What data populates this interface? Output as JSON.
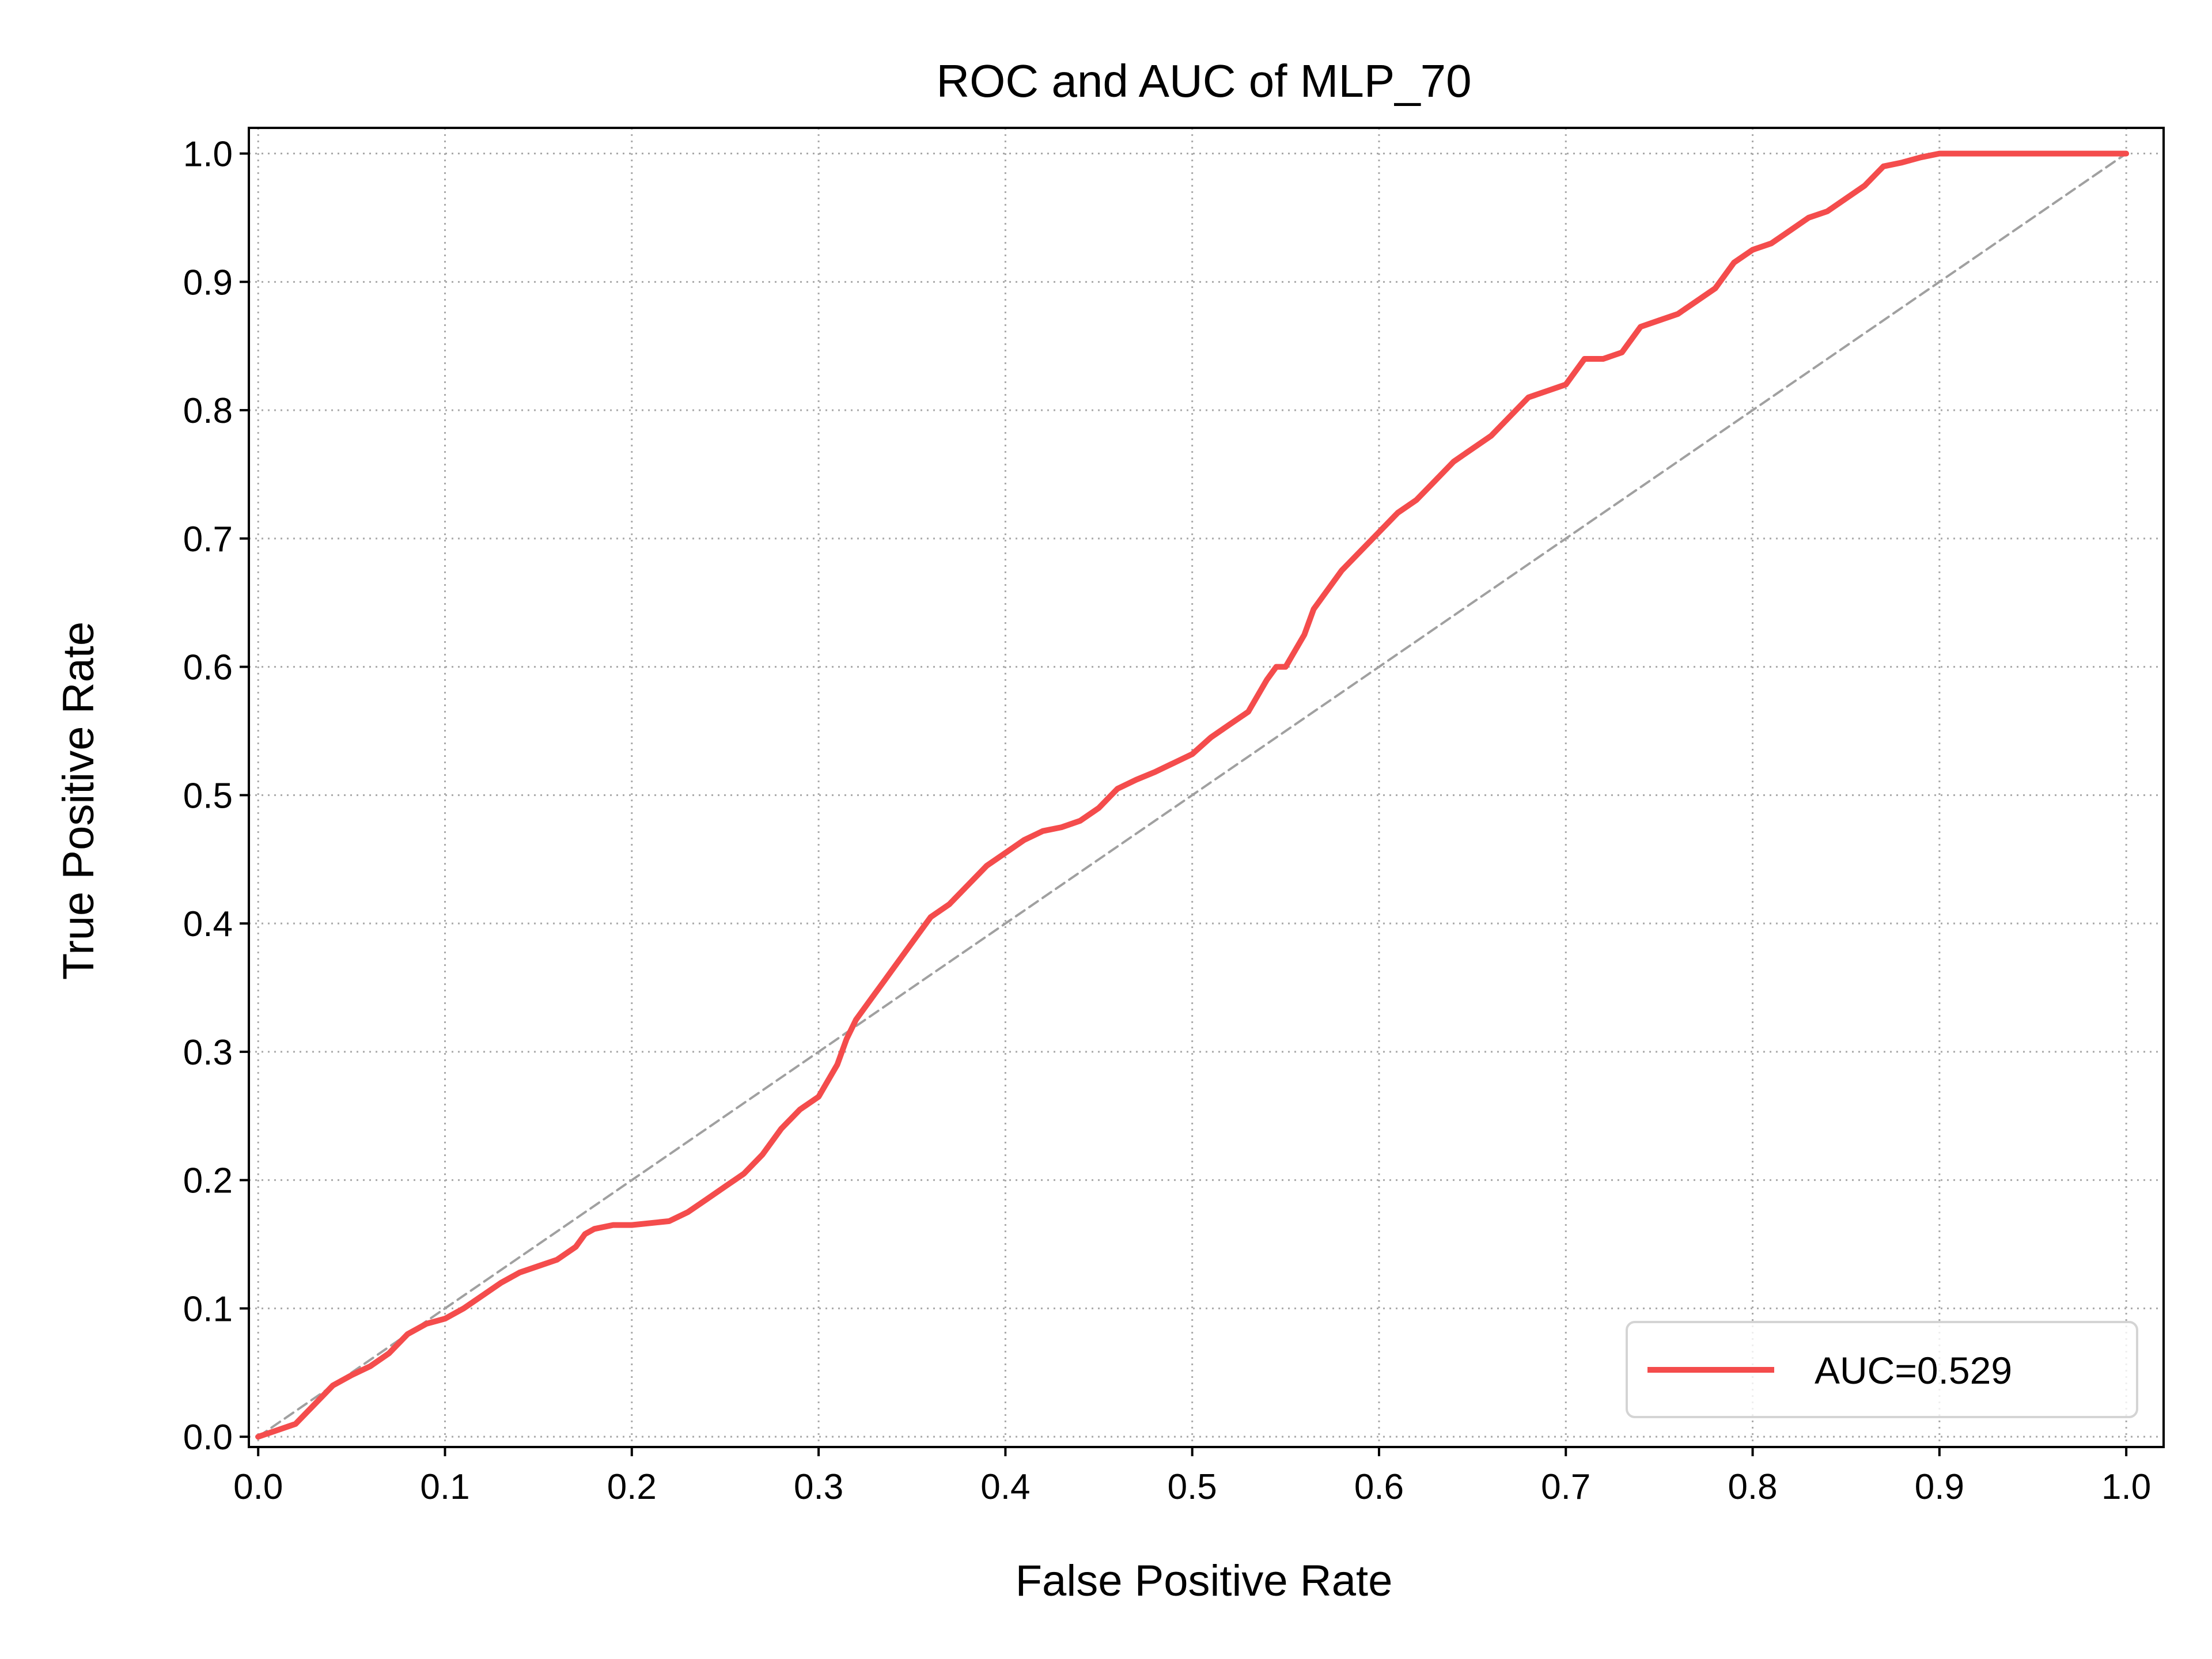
{
  "chart_data": {
    "type": "line",
    "title": "ROC and AUC of MLP_70",
    "xlabel": "False Positive Rate",
    "ylabel": "True Positive Rate",
    "xlim": [
      -0.005,
      1.02
    ],
    "ylim": [
      -0.008,
      1.02
    ],
    "xticks": [
      "0.0",
      "0.1",
      "0.2",
      "0.3",
      "0.4",
      "0.5",
      "0.6",
      "0.7",
      "0.8",
      "0.9",
      "1.0"
    ],
    "yticks": [
      "0.0",
      "0.1",
      "0.2",
      "0.3",
      "0.4",
      "0.5",
      "0.6",
      "0.7",
      "0.8",
      "0.9",
      "1.0"
    ],
    "grid": true,
    "legend_position": "lower-right",
    "series": [
      {
        "name": "AUC=0.529",
        "color": "#f44c4c",
        "x": [
          0.0,
          0.02,
          0.03,
          0.04,
          0.05,
          0.06,
          0.07,
          0.08,
          0.09,
          0.1,
          0.11,
          0.12,
          0.13,
          0.14,
          0.15,
          0.16,
          0.17,
          0.175,
          0.18,
          0.19,
          0.2,
          0.22,
          0.23,
          0.24,
          0.25,
          0.26,
          0.27,
          0.28,
          0.29,
          0.3,
          0.31,
          0.315,
          0.32,
          0.33,
          0.335,
          0.34,
          0.35,
          0.36,
          0.37,
          0.38,
          0.39,
          0.4,
          0.41,
          0.42,
          0.43,
          0.44,
          0.45,
          0.46,
          0.47,
          0.48,
          0.49,
          0.5,
          0.51,
          0.52,
          0.53,
          0.54,
          0.545,
          0.55,
          0.56,
          0.565,
          0.57,
          0.58,
          0.59,
          0.6,
          0.61,
          0.62,
          0.63,
          0.64,
          0.65,
          0.66,
          0.67,
          0.68,
          0.69,
          0.7,
          0.71,
          0.72,
          0.73,
          0.74,
          0.75,
          0.76,
          0.77,
          0.78,
          0.79,
          0.8,
          0.81,
          0.82,
          0.83,
          0.84,
          0.85,
          0.86,
          0.87,
          0.88,
          0.89,
          0.9,
          0.91,
          0.92,
          0.93,
          0.94,
          0.95,
          0.96,
          0.97,
          0.98,
          0.99,
          1.0
        ],
        "y": [
          0.0,
          0.01,
          0.025,
          0.04,
          0.048,
          0.055,
          0.065,
          0.08,
          0.088,
          0.092,
          0.1,
          0.11,
          0.12,
          0.128,
          0.133,
          0.138,
          0.148,
          0.158,
          0.162,
          0.165,
          0.165,
          0.168,
          0.175,
          0.185,
          0.195,
          0.205,
          0.22,
          0.24,
          0.255,
          0.265,
          0.29,
          0.31,
          0.325,
          0.345,
          0.355,
          0.365,
          0.385,
          0.405,
          0.415,
          0.43,
          0.445,
          0.455,
          0.465,
          0.472,
          0.475,
          0.48,
          0.49,
          0.505,
          0.512,
          0.518,
          0.525,
          0.532,
          0.545,
          0.555,
          0.565,
          0.59,
          0.6,
          0.6,
          0.625,
          0.645,
          0.655,
          0.675,
          0.69,
          0.705,
          0.72,
          0.73,
          0.745,
          0.76,
          0.77,
          0.78,
          0.795,
          0.81,
          0.815,
          0.82,
          0.84,
          0.84,
          0.845,
          0.865,
          0.87,
          0.875,
          0.885,
          0.895,
          0.915,
          0.925,
          0.93,
          0.94,
          0.95,
          0.955,
          0.965,
          0.975,
          0.99,
          0.993,
          0.997,
          1.0,
          1.0,
          1.0,
          1.0,
          1.0,
          1.0,
          1.0,
          1.0,
          1.0,
          1.0,
          1.0
        ]
      },
      {
        "name": "",
        "color": "#a0a0a0",
        "style": "dashed",
        "x": [
          0.0,
          1.0
        ],
        "y": [
          0.0,
          1.0
        ]
      }
    ],
    "legend": [
      {
        "label": "AUC=0.529",
        "color": "#f44c4c"
      }
    ]
  }
}
